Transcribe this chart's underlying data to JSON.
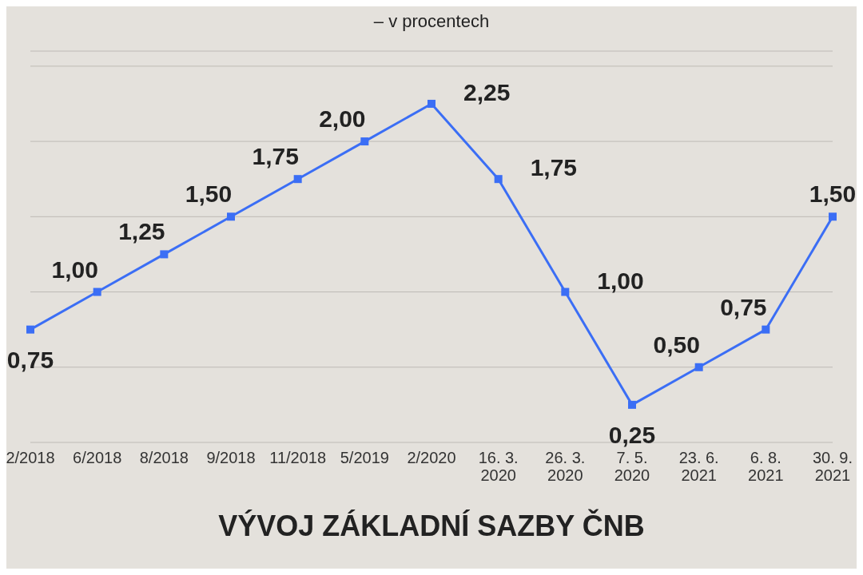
{
  "chart_data": {
    "type": "line",
    "title": "VÝVOJ ZÁKLADNÍ SAZBY ČNB",
    "subtitle": "– v procentech",
    "categories": [
      "2/2018",
      "6/2018",
      "8/2018",
      "9/2018",
      "11/2018",
      "5/2019",
      "2/2020",
      "16. 3. 2020",
      "26. 3. 2020",
      "7. 5. 2020",
      "23. 6. 2021",
      "6. 8. 2021",
      "30. 9. 2021"
    ],
    "series": [
      {
        "color": "#3b6ef5",
        "values": [
          0.75,
          1.0,
          1.25,
          1.5,
          1.75,
          2.0,
          2.25,
          1.75,
          1.0,
          0.25,
          0.5,
          0.75,
          1.5
        ],
        "value_labels": [
          "0,75",
          "1,00",
          "1,25",
          "1,50",
          "1,75",
          "2,00",
          "2,25",
          "1,75",
          "1,00",
          "0,25",
          "0,50",
          "0,75",
          "1,50"
        ]
      }
    ],
    "ylim": [
      0,
      2.6
    ],
    "yticks": [
      {
        "value": 0,
        "label": null
      },
      {
        "value": 0.5,
        "label": null
      },
      {
        "value": 1,
        "label": null
      },
      {
        "value": 1.5,
        "label": null
      },
      {
        "value": 2,
        "label": null
      },
      {
        "value": 2.5,
        "label": null
      }
    ],
    "grid": "y",
    "marker": "square",
    "line_style": "solid",
    "legend": false
  }
}
